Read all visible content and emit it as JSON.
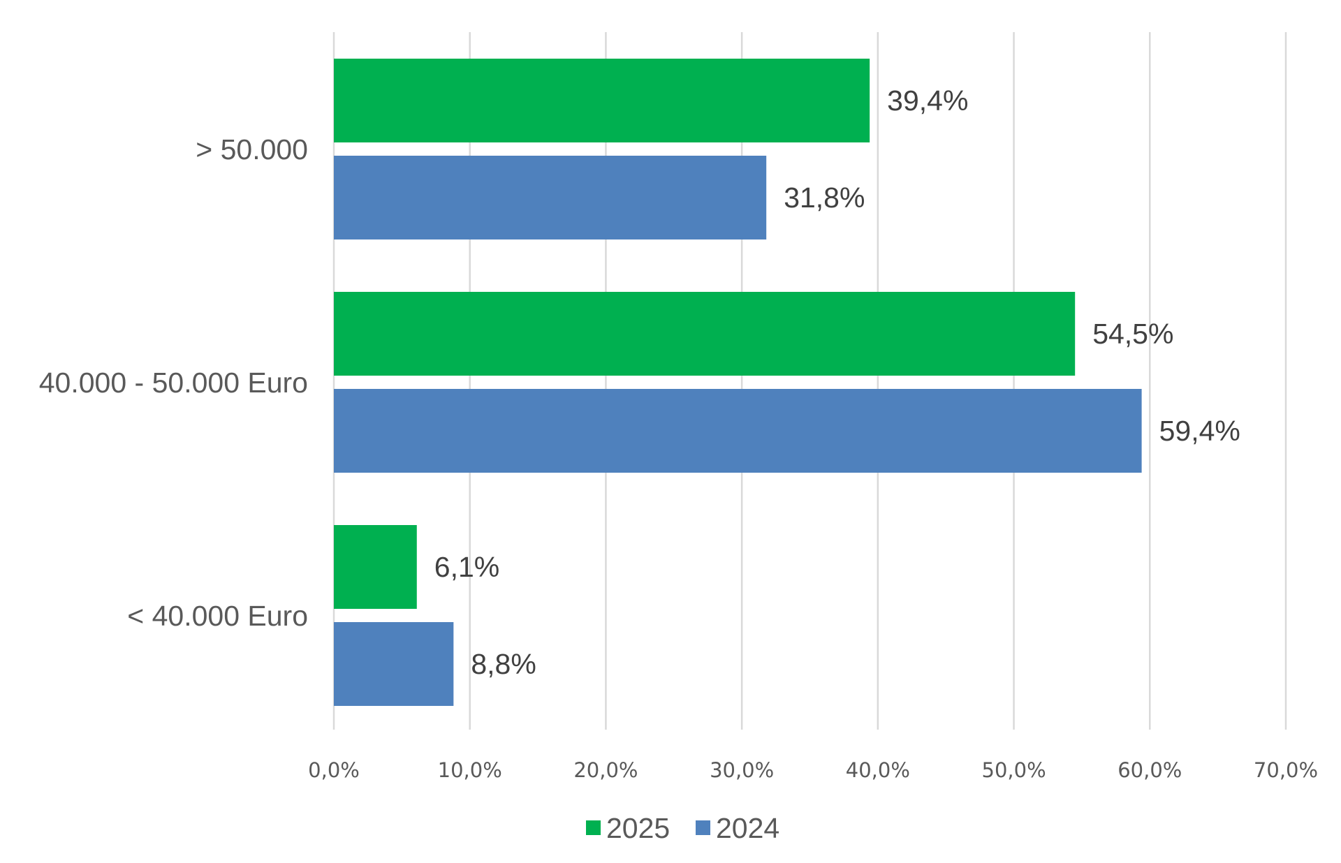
{
  "chart_data": {
    "type": "bar",
    "orientation": "horizontal",
    "categories": [
      "> 50.000",
      "40.000  - 50.000 Euro",
      "< 40.000 Euro"
    ],
    "series": [
      {
        "name": "2025",
        "values": [
          39.4,
          54.5,
          6.1
        ],
        "labels": [
          "39,4%",
          "54,5%",
          "6,1%"
        ],
        "color": "#00B050"
      },
      {
        "name": "2024",
        "values": [
          31.8,
          59.4,
          8.8
        ],
        "labels": [
          "31,8%",
          "59,4%",
          "8,8%"
        ],
        "color": "#4F81BD"
      }
    ],
    "xlim": [
      0,
      70
    ],
    "xticks": [
      0,
      10,
      20,
      30,
      40,
      50,
      60,
      70
    ],
    "xtick_labels": [
      "0,0%",
      "10,0%",
      "20,0%",
      "30,0%",
      "40,0%",
      "50,0%",
      "60,0%",
      "70,0%"
    ],
    "grid": true,
    "legend_position": "bottom",
    "title": "",
    "xlabel": "",
    "ylabel": ""
  }
}
